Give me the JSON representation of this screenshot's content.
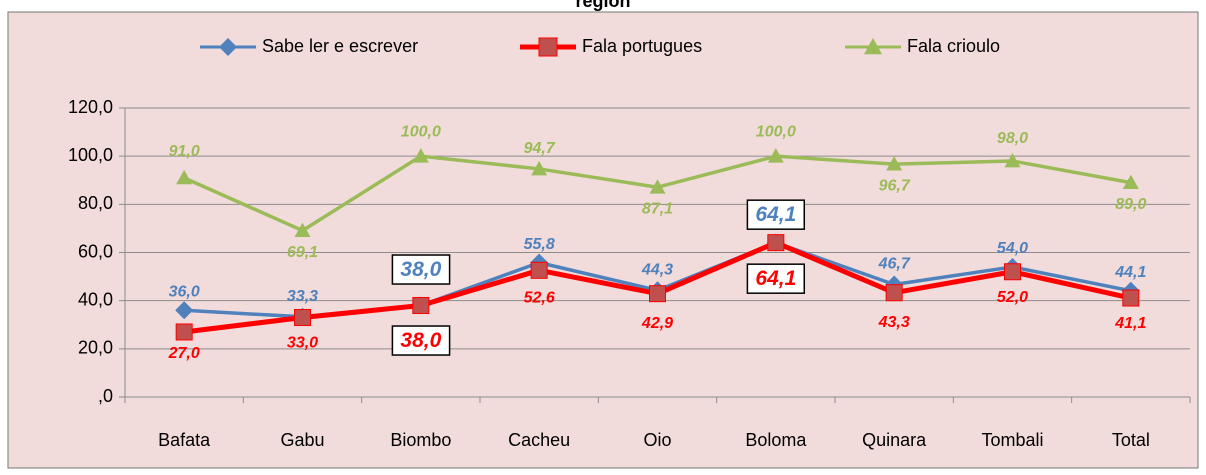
{
  "chart_data": {
    "type": "line",
    "title": "region",
    "categories": [
      "Bafata",
      "Gabu",
      "Biombo",
      "Cacheu",
      "Oio",
      "Boloma",
      "Quinara",
      "Tombali",
      "Total"
    ],
    "series": [
      {
        "name": "Sabe ler e escrever",
        "color": "#4f81bd",
        "marker": "diamond",
        "values": [
          36.0,
          33.3,
          38.0,
          55.8,
          44.3,
          64.1,
          46.7,
          54.0,
          44.1
        ],
        "value_labels": [
          "36,0",
          "33,3",
          "38,0",
          "55,8",
          "44,3",
          "64,1",
          "46,7",
          "54,0",
          "44,1"
        ]
      },
      {
        "name": "Fala portugues",
        "color": "#ff0000",
        "marker": "square",
        "values": [
          27.0,
          33.0,
          38.0,
          52.6,
          42.9,
          64.1,
          43.3,
          52.0,
          41.1
        ],
        "value_labels": [
          "27,0",
          "33,0",
          "38,0",
          "52,6",
          "42,9",
          "64,1",
          "43,3",
          "52,0",
          "41,1"
        ]
      },
      {
        "name": "Fala crioulo",
        "color": "#9bbb59",
        "marker": "triangle",
        "values": [
          91.0,
          69.1,
          100.0,
          94.7,
          87.1,
          100.0,
          96.7,
          98.0,
          89.0
        ],
        "value_labels": [
          "91,0",
          "69,1",
          "100,0",
          "94,7",
          "87,1",
          "100,0",
          "96,7",
          "98,0",
          "89,0"
        ]
      }
    ],
    "ylim": [
      0,
      120
    ],
    "yticks": [
      {
        "value": 0,
        "label": ",0"
      },
      {
        "value": 20,
        "label": "20,0"
      },
      {
        "value": 40,
        "label": "40,0"
      },
      {
        "value": 60,
        "label": "60,0"
      },
      {
        "value": 80,
        "label": "80,0"
      },
      {
        "value": 100,
        "label": "100,0"
      },
      {
        "value": 120,
        "label": "120,0"
      }
    ],
    "grid": true,
    "legend": "top"
  }
}
